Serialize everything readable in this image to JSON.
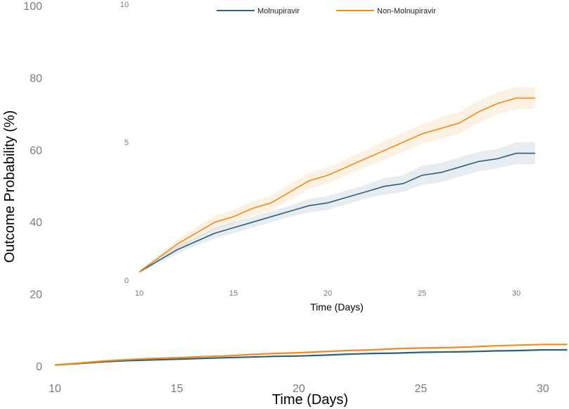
{
  "legend": {
    "items": [
      {
        "label": "Molnupiravir",
        "color": "#2f5f7a"
      },
      {
        "label": "Non-Molnupiravir",
        "color": "#f08a1c"
      }
    ]
  },
  "chart_data": [
    {
      "type": "line",
      "title": "",
      "xlabel": "Time (Days)",
      "ylabel": "Outcome Probability (%)",
      "xlim": [
        10,
        31
      ],
      "ylim": [
        0,
        100
      ],
      "xticks": [
        10,
        15,
        20,
        25,
        30
      ],
      "yticks": [
        0,
        20,
        40,
        60,
        80,
        100
      ],
      "grid": false,
      "x": [
        10,
        11,
        12,
        13,
        14,
        15,
        16,
        17,
        18,
        19,
        20,
        21,
        22,
        23,
        24,
        25,
        26,
        27,
        28,
        29,
        30,
        31
      ],
      "series": [
        {
          "name": "Molnupiravir",
          "color": "#2f5f7a",
          "values": [
            0.3,
            0.7,
            1.2,
            1.5,
            1.7,
            1.9,
            2.1,
            2.3,
            2.5,
            2.7,
            2.8,
            3.0,
            3.3,
            3.5,
            3.6,
            3.8,
            3.9,
            4.0,
            4.2,
            4.3,
            4.5,
            4.5
          ]
        },
        {
          "name": "Non-Molnupiravir",
          "color": "#f08a1c",
          "values": [
            0.3,
            0.8,
            1.4,
            1.8,
            2.1,
            2.3,
            2.6,
            2.8,
            3.2,
            3.5,
            3.7,
            4.0,
            4.3,
            4.5,
            4.8,
            5.0,
            5.1,
            5.3,
            5.6,
            5.8,
            6.0,
            6.0
          ]
        }
      ]
    },
    {
      "type": "area",
      "title": "",
      "xlabel": "Time (Days)",
      "ylabel": "",
      "xlim": [
        10,
        31
      ],
      "ylim": [
        0,
        10
      ],
      "xticks": [
        10,
        15,
        20,
        25,
        30
      ],
      "yticks": [
        0,
        5,
        10
      ],
      "grid": false,
      "legend_position": "top",
      "x": [
        10,
        11,
        12,
        13,
        14,
        15,
        16,
        17,
        18,
        19,
        20,
        21,
        22,
        23,
        24,
        25,
        26,
        27,
        28,
        29,
        30,
        31
      ],
      "series": [
        {
          "name": "Molnupiravir",
          "color": "#2f5f7a",
          "values": [
            0.3,
            0.7,
            1.1,
            1.4,
            1.7,
            1.9,
            2.1,
            2.3,
            2.5,
            2.7,
            2.8,
            3.0,
            3.2,
            3.4,
            3.5,
            3.8,
            3.9,
            4.1,
            4.3,
            4.4,
            4.6,
            4.6
          ],
          "lower": [
            0.25,
            0.6,
            0.95,
            1.25,
            1.5,
            1.7,
            1.9,
            2.1,
            2.3,
            2.45,
            2.55,
            2.75,
            2.95,
            3.1,
            3.2,
            3.45,
            3.55,
            3.75,
            3.95,
            4.05,
            4.2,
            4.2
          ],
          "upper": [
            0.35,
            0.8,
            1.25,
            1.55,
            1.9,
            2.1,
            2.3,
            2.5,
            2.7,
            2.95,
            3.05,
            3.25,
            3.45,
            3.7,
            3.8,
            4.15,
            4.25,
            4.45,
            4.65,
            4.75,
            5.0,
            5.0
          ]
        },
        {
          "name": "Non-Molnupiravir",
          "color": "#f08a1c",
          "values": [
            0.3,
            0.8,
            1.3,
            1.7,
            2.1,
            2.3,
            2.6,
            2.8,
            3.2,
            3.6,
            3.8,
            4.1,
            4.4,
            4.7,
            5.0,
            5.3,
            5.5,
            5.7,
            6.1,
            6.4,
            6.6,
            6.6
          ],
          "lower": [
            0.25,
            0.7,
            1.15,
            1.5,
            1.85,
            2.05,
            2.35,
            2.55,
            2.9,
            3.3,
            3.5,
            3.8,
            4.1,
            4.35,
            4.65,
            4.95,
            5.1,
            5.3,
            5.7,
            6.0,
            6.2,
            6.2
          ],
          "upper": [
            0.35,
            0.9,
            1.45,
            1.9,
            2.35,
            2.55,
            2.85,
            3.05,
            3.5,
            3.9,
            4.1,
            4.4,
            4.7,
            5.05,
            5.35,
            5.65,
            5.9,
            6.1,
            6.5,
            6.8,
            7.0,
            7.0
          ]
        }
      ]
    }
  ]
}
